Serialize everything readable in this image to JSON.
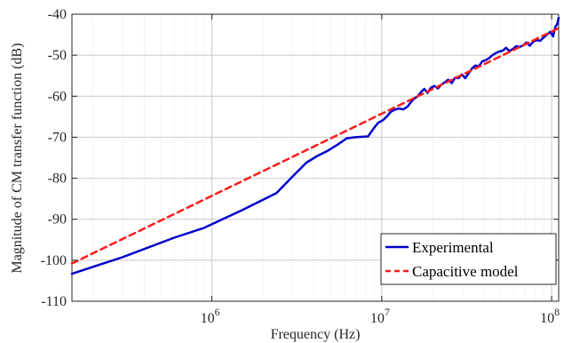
{
  "chart_data": {
    "type": "line",
    "xlabel": "Frequency (Hz)",
    "ylabel": "Magnitude of CM transfer function (dB)",
    "xscale": "log",
    "xlim": [
      150000,
      110000000
    ],
    "ylim": [
      -110,
      -40
    ],
    "grid": true,
    "legend_position": "bottom-right",
    "x_tick_values": [
      1000000,
      10000000,
      100000000
    ],
    "x_tick_labels": [
      {
        "base": "10",
        "exp": "6"
      },
      {
        "base": "10",
        "exp": "7"
      },
      {
        "base": "10",
        "exp": "8"
      }
    ],
    "y_ticks": [
      -110,
      -100,
      -90,
      -80,
      -70,
      -60,
      -50,
      -40
    ],
    "y_tick_labels": [
      "-110",
      "-100",
      "-90",
      "-80",
      "-70",
      "-60",
      "-50",
      "-40"
    ],
    "series": [
      {
        "name": "Experimental",
        "color": "#0000cc",
        "style": "solid",
        "x": [
          150000,
          300000,
          600000,
          900000,
          1500000,
          2400000,
          3000000,
          3600000,
          4200000,
          4800000,
          5500000,
          6200000,
          7000000,
          8300000,
          8900000,
          9500000,
          10200000,
          10800000,
          11300000,
          11900000,
          12600000,
          13400000,
          14200000,
          15000000,
          15600000,
          16300000,
          17000000,
          17800000,
          18600000,
          19500000,
          20400000,
          21400000,
          22400000,
          23500000,
          24600000,
          25800000,
          27000000,
          28300000,
          29600000,
          31000000,
          32500000,
          34000000,
          35600000,
          37300000,
          39000000,
          40900000,
          42800000,
          44800000,
          46900000,
          49100000,
          51500000,
          53900000,
          56400000,
          59100000,
          61900000,
          64800000,
          67900000,
          71100000,
          74400000,
          77900000,
          81600000,
          85500000,
          89500000,
          93700000,
          98100000,
          102000000,
          105000000,
          108000000,
          110000000
        ],
        "y": [
          -103.3,
          -99.2,
          -94.5,
          -92.1,
          -87.8,
          -83.6,
          -79.5,
          -76.2,
          -74.5,
          -73.3,
          -71.8,
          -70.3,
          -70.0,
          -69.8,
          -68.0,
          -66.5,
          -65.8,
          -64.8,
          -63.8,
          -63.3,
          -63.0,
          -63.2,
          -62.5,
          -61.2,
          -60.5,
          -60.0,
          -59.0,
          -58.2,
          -59.2,
          -57.9,
          -57.5,
          -58.1,
          -57.2,
          -56.6,
          -56.0,
          -56.8,
          -55.5,
          -55.6,
          -54.7,
          -55.6,
          -54.4,
          -53.2,
          -52.5,
          -52.7,
          -51.5,
          -51.2,
          -50.7,
          -50.0,
          -49.5,
          -49.1,
          -48.9,
          -48.2,
          -49.0,
          -48.5,
          -47.8,
          -48.0,
          -47.6,
          -46.9,
          -47.7,
          -46.7,
          -46.3,
          -46.5,
          -45.7,
          -45.0,
          -44.3,
          -45.4,
          -43.2,
          -42.3,
          -40.9
        ]
      },
      {
        "name": "Capacitive model",
        "color": "#ff1a1a",
        "style": "dashed",
        "x": [
          150000,
          110000000
        ],
        "y": [
          -100.8,
          -43.4
        ]
      }
    ]
  }
}
